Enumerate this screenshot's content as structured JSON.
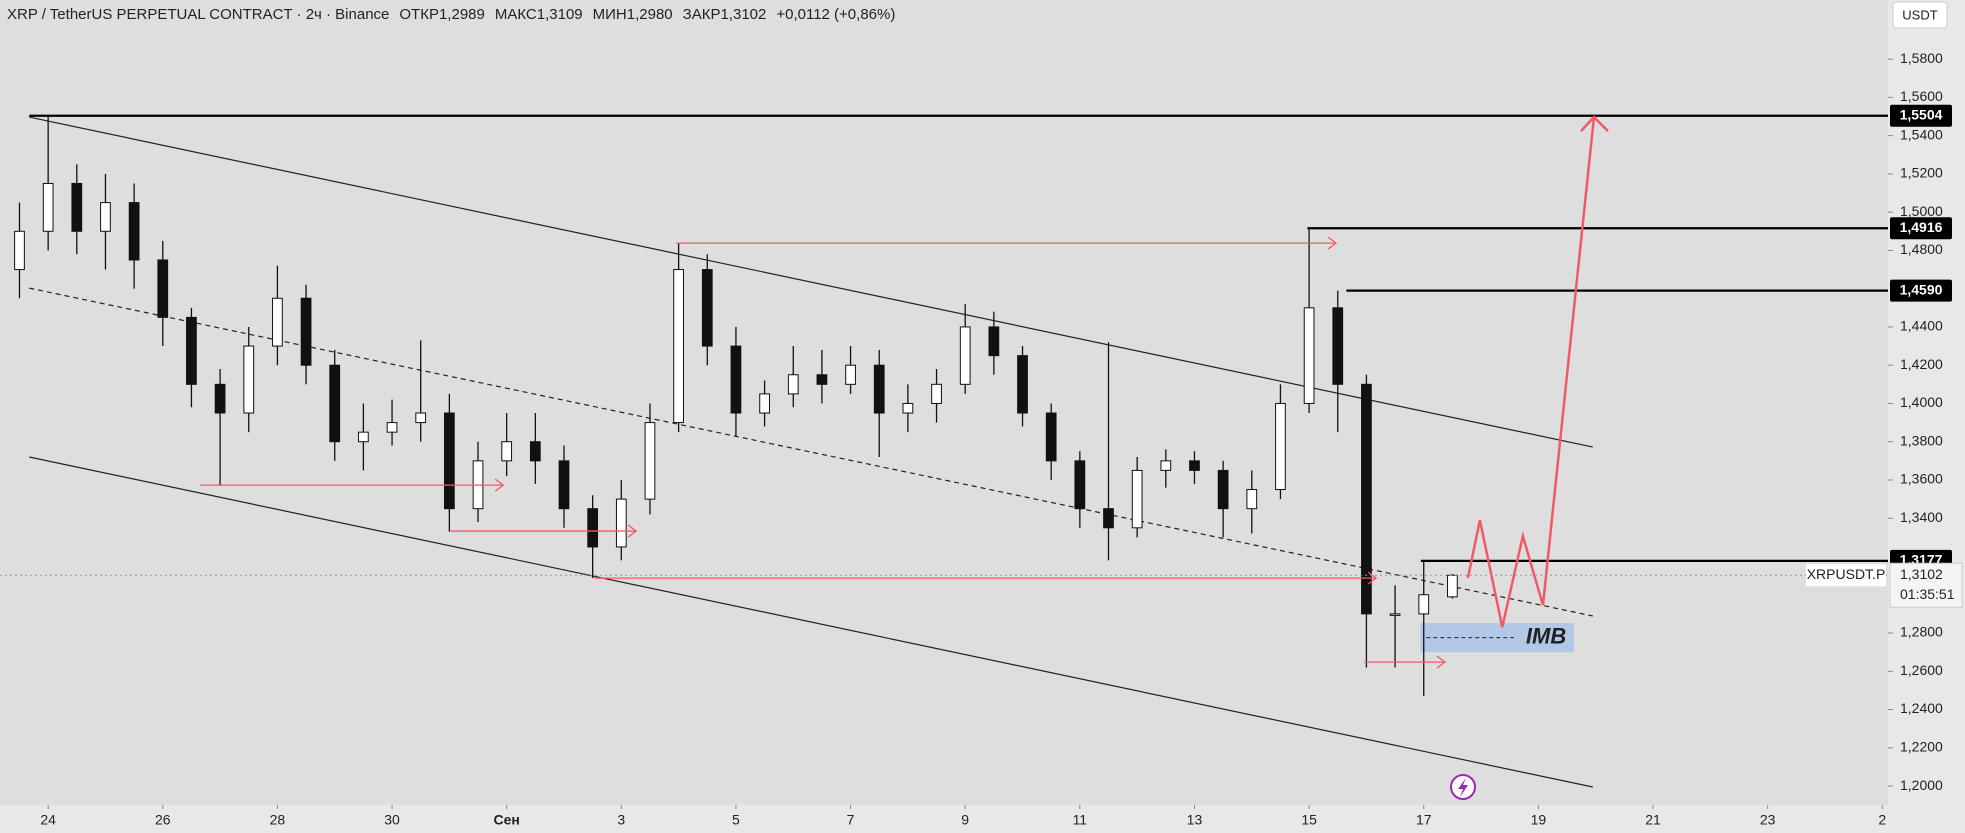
{
  "chart_data": {
    "type": "candlestick",
    "header": {
      "symbol": "XRP / TetherUS PERPETUAL CONTRACT · 2ч · Binance",
      "fields": [
        {
          "label": "ОТКР",
          "value": "1,2989"
        },
        {
          "label": "МАКС",
          "value": "1,3109"
        },
        {
          "label": "МИН",
          "value": "1,2980"
        },
        {
          "label": "ЗАКР",
          "value": "1,3102"
        }
      ],
      "change": "+0,0112 (+0,86%)"
    },
    "currency": "USDT",
    "ticker_label": "XRPUSDT.P",
    "last_price_label": "1,3102",
    "countdown": "01:35:51",
    "xlim": [
      -0.84,
      32.1
    ],
    "ylim": [
      1.1901,
      1.6109
    ],
    "xticks": [
      {
        "value": 0,
        "label": "24"
      },
      {
        "value": 2,
        "label": "26"
      },
      {
        "value": 4,
        "label": "28"
      },
      {
        "value": 6,
        "label": "30"
      },
      {
        "value": 8,
        "label": "Сен"
      },
      {
        "value": 10,
        "label": "3"
      },
      {
        "value": 12,
        "label": "5"
      },
      {
        "value": 14,
        "label": "7"
      },
      {
        "value": 16,
        "label": "9"
      },
      {
        "value": 18,
        "label": "11"
      },
      {
        "value": 20,
        "label": "13"
      },
      {
        "value": 22,
        "label": "15"
      },
      {
        "value": 24,
        "label": "17"
      },
      {
        "value": 26,
        "label": "19"
      },
      {
        "value": 28,
        "label": "21"
      },
      {
        "value": 30,
        "label": "23"
      },
      {
        "value": 32,
        "label": "2"
      }
    ],
    "yticks": [
      {
        "value": 1.58,
        "label": "1,5800"
      },
      {
        "value": 1.56,
        "label": "1,5600"
      },
      {
        "value": 1.54,
        "label": "1,5400"
      },
      {
        "value": 1.52,
        "label": "1,5200"
      },
      {
        "value": 1.5,
        "label": "1,5000"
      },
      {
        "value": 1.48,
        "label": "1,4800"
      },
      {
        "value": 1.44,
        "label": "1,4400"
      },
      {
        "value": 1.42,
        "label": "1,4200"
      },
      {
        "value": 1.4,
        "label": "1,4000"
      },
      {
        "value": 1.38,
        "label": "1,3800"
      },
      {
        "value": 1.36,
        "label": "1,3600"
      },
      {
        "value": 1.34,
        "label": "1,3400"
      },
      {
        "value": 1.28,
        "label": "1,2800"
      },
      {
        "value": 1.26,
        "label": "1,2600"
      },
      {
        "value": 1.24,
        "label": "1,2400"
      },
      {
        "value": 1.22,
        "label": "1,2200"
      },
      {
        "value": 1.2,
        "label": "1,2000"
      }
    ],
    "up_color": "#ffffff",
    "down_color": "#111111",
    "candles": {
      "x": [
        -0.5,
        0,
        0.5,
        1,
        1.5,
        2,
        2.5,
        3,
        3.5,
        4,
        4.5,
        5,
        5.5,
        6,
        6.5,
        7,
        7.5,
        8,
        8.5,
        9,
        9.5,
        10,
        10.5,
        11,
        11.5,
        12,
        12.5,
        13,
        13.5,
        14,
        14.5,
        15,
        15.5,
        16,
        16.5,
        17,
        17.5,
        18,
        18.5,
        19,
        19.5,
        20,
        20.5,
        21,
        21.5,
        22,
        22.5,
        23,
        23.5,
        24,
        24.5
      ],
      "open": [
        1.47,
        1.49,
        1.515,
        1.49,
        1.505,
        1.475,
        1.445,
        1.41,
        1.395,
        1.43,
        1.455,
        1.42,
        1.38,
        1.385,
        1.39,
        1.395,
        1.345,
        1.37,
        1.38,
        1.37,
        1.345,
        1.325,
        1.35,
        1.39,
        1.47,
        1.43,
        1.395,
        1.405,
        1.415,
        1.41,
        1.42,
        1.395,
        1.4,
        1.41,
        1.44,
        1.425,
        1.395,
        1.37,
        1.345,
        1.335,
        1.365,
        1.37,
        1.365,
        1.345,
        1.355,
        1.4,
        1.45,
        1.41,
        1.29,
        1.29,
        1.2989
      ],
      "high": [
        1.505,
        1.5504,
        1.525,
        1.52,
        1.515,
        1.485,
        1.45,
        1.418,
        1.44,
        1.472,
        1.462,
        1.428,
        1.4,
        1.402,
        1.433,
        1.405,
        1.38,
        1.395,
        1.395,
        1.378,
        1.352,
        1.36,
        1.4,
        1.4838,
        1.478,
        1.44,
        1.412,
        1.43,
        1.428,
        1.43,
        1.428,
        1.41,
        1.418,
        1.452,
        1.448,
        1.43,
        1.4,
        1.375,
        1.432,
        1.372,
        1.376,
        1.375,
        1.37,
        1.365,
        1.41,
        1.4916,
        1.459,
        1.415,
        1.305,
        1.3177,
        1.3109
      ],
      "low": [
        1.455,
        1.48,
        1.478,
        1.47,
        1.46,
        1.43,
        1.398,
        1.357,
        1.385,
        1.42,
        1.41,
        1.37,
        1.365,
        1.378,
        1.38,
        1.333,
        1.338,
        1.362,
        1.358,
        1.335,
        1.3087,
        1.318,
        1.342,
        1.385,
        1.42,
        1.383,
        1.388,
        1.398,
        1.4,
        1.405,
        1.372,
        1.385,
        1.39,
        1.405,
        1.415,
        1.388,
        1.36,
        1.335,
        1.318,
        1.33,
        1.356,
        1.358,
        1.33,
        1.332,
        1.35,
        1.395,
        1.385,
        1.262,
        1.262,
        1.247,
        1.298
      ],
      "close": [
        1.49,
        1.515,
        1.49,
        1.505,
        1.475,
        1.445,
        1.41,
        1.395,
        1.43,
        1.455,
        1.42,
        1.38,
        1.385,
        1.39,
        1.395,
        1.345,
        1.37,
        1.38,
        1.37,
        1.345,
        1.325,
        1.35,
        1.39,
        1.47,
        1.43,
        1.395,
        1.405,
        1.415,
        1.41,
        1.42,
        1.395,
        1.4,
        1.41,
        1.44,
        1.425,
        1.395,
        1.37,
        1.345,
        1.335,
        1.365,
        1.37,
        1.365,
        1.345,
        1.355,
        1.4,
        1.45,
        1.41,
        1.29,
        1.29,
        1.3,
        1.3102
      ]
    },
    "trend_lines": [
      {
        "x": [
          -0.33,
          26.95
        ],
        "y": [
          1.5497,
          1.3772
        ],
        "style": "solid"
      },
      {
        "x": [
          -0.33,
          26.95
        ],
        "y": [
          1.372,
          1.1995
        ],
        "style": "solid"
      },
      {
        "x": [
          -0.33,
          26.95
        ],
        "y": [
          1.4603,
          1.2889
        ],
        "style": "dashed"
      }
    ],
    "levels": [
      {
        "value": 1.5504,
        "label": "1,5504",
        "x_start": -0.33
      },
      {
        "value": 1.4916,
        "label": "1,4916",
        "x_start": 21.97
      },
      {
        "value": 1.459,
        "label": "1,4590",
        "x_start": 22.65
      },
      {
        "value": 1.3177,
        "label": "1,3177",
        "x_start": 23.95
      }
    ],
    "rays": [
      {
        "x": [
          10.96,
          22.47
        ],
        "y": 1.4838
      },
      {
        "x": [
          2.65,
          7.94
        ],
        "y": 1.3573
      },
      {
        "x": [
          7.02,
          10.26
        ],
        "y": 1.3333
      },
      {
        "x": [
          9.53,
          23.17
        ],
        "y": 1.3087
      },
      {
        "x": [
          22.96,
          24.37
        ],
        "y": 1.2648
      }
    ],
    "projection": {
      "x": [
        24.77,
        24.98,
        25.37,
        25.73,
        26.08,
        26.97
      ],
      "y": [
        1.3087,
        1.339,
        1.2831,
        1.3307,
        1.2946,
        1.5497
      ],
      "color": "#ef5a66"
    },
    "imb": {
      "x": [
        23.94,
        26.62
      ],
      "y": [
        1.27,
        1.2852
      ],
      "label": "IMB"
    }
  }
}
